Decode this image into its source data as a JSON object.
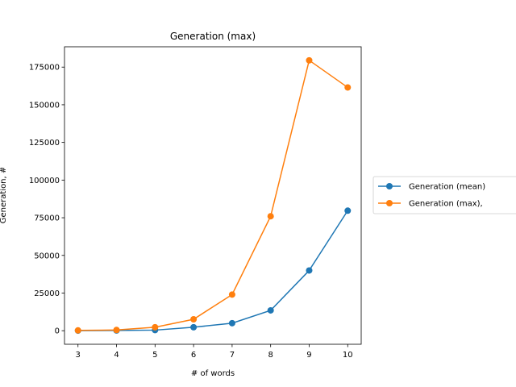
{
  "chart_data": {
    "type": "line",
    "title": "Generation (max)",
    "xlabel": "# of words",
    "ylabel": "Generation, #",
    "x": [
      3,
      4,
      5,
      6,
      7,
      8,
      9,
      10
    ],
    "xlim": [
      2.65,
      10.35
    ],
    "ylim": [
      -9000,
      188500
    ],
    "xticks": [
      3,
      4,
      5,
      6,
      7,
      8,
      9,
      10
    ],
    "yticks": [
      0,
      25000,
      50000,
      75000,
      100000,
      125000,
      150000,
      175000
    ],
    "grid": false,
    "legend_position": "right, outside plot",
    "series": [
      {
        "name": "Generation (mean)",
        "color": "#1f77b4",
        "marker": "circle",
        "values": [
          50,
          150,
          400,
          2300,
          5000,
          13500,
          40000,
          79700
        ]
      },
      {
        "name": "Generation (max),",
        "color": "#ff7f0e",
        "marker": "circle",
        "values": [
          200,
          500,
          2300,
          7600,
          24000,
          76000,
          179500,
          161500
        ]
      }
    ]
  }
}
